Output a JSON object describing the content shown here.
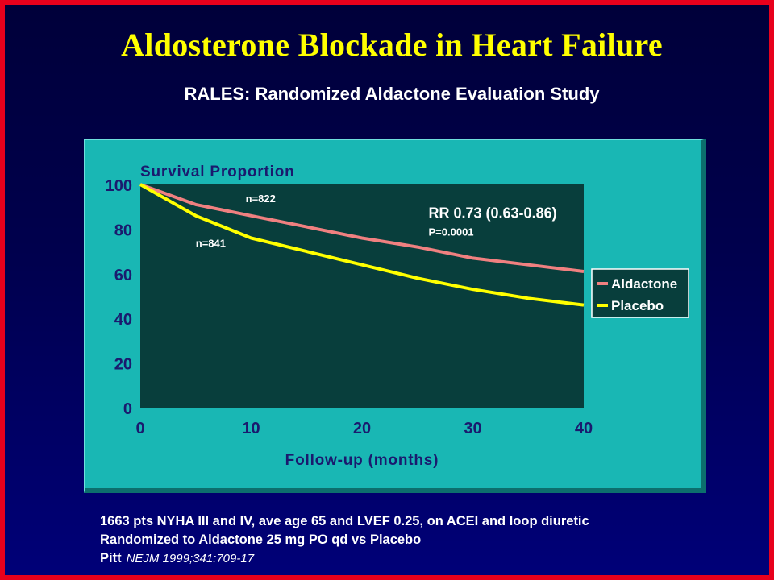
{
  "slide": {
    "title": "Aldosterone Blockade in Heart Failure",
    "subtitle": "RALES: Randomized Aldactone Evaluation Study",
    "colors": {
      "title": "#ffff00",
      "frame": "#e8001c",
      "panel": "#19b7b4",
      "plot_bg": "#083e3c"
    },
    "footnote": {
      "line1": "1663 pts NYHA III and IV, ave age 65 and LVEF 0.25, on ACEI and loop diuretic",
      "line2": "Randomized to Aldactone 25 mg PO qd vs Placebo",
      "author": "Pitt",
      "citation": "NEJM 1999;341:709-17"
    }
  },
  "chart_data": {
    "type": "line",
    "title": "Survival Proportion",
    "xlabel": "Follow-up (months)",
    "ylabel": "",
    "xlim": [
      0,
      40
    ],
    "ylim": [
      0,
      100
    ],
    "xticks": [
      "0",
      "10",
      "20",
      "30",
      "40"
    ],
    "yticks": [
      "0",
      "20",
      "40",
      "60",
      "80",
      "100"
    ],
    "legend_position": "right",
    "series": [
      {
        "name": "Aldactone",
        "color": "#f08080",
        "x": [
          0,
          5,
          10,
          15,
          20,
          25,
          30,
          35,
          40
        ],
        "y": [
          100,
          91,
          86,
          81,
          76,
          72,
          67,
          64,
          61
        ]
      },
      {
        "name": "Placebo",
        "color": "#ffff00",
        "x": [
          0,
          5,
          10,
          15,
          20,
          25,
          30,
          35,
          40
        ],
        "y": [
          100,
          86,
          76,
          70,
          64,
          58,
          53,
          49,
          46
        ]
      }
    ],
    "annotations": [
      {
        "text": "n=822",
        "x": 9.5,
        "y": 92
      },
      {
        "text": "n=841",
        "x": 5,
        "y": 72
      },
      {
        "text": "RR 0.73 (0.63-0.86)",
        "x": 26,
        "y": 85
      },
      {
        "text": "P=0.0001",
        "x": 26,
        "y": 77
      }
    ]
  }
}
